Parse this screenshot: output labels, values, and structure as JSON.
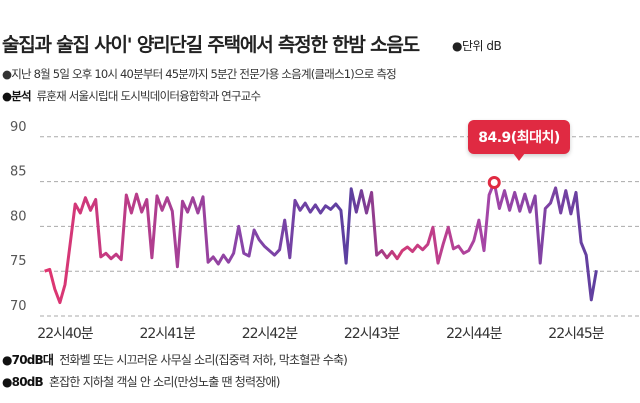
{
  "header": {
    "title": "술집과 술집 사이' 양리단길 주택에서 측정한 한밤 소음도",
    "unit": "●단위 dB",
    "note1": "●지난 8월 5일 오후 10시 40분부터 45분까지 5분간 전문가용 소음계(클래스1)으로 측정",
    "note2_label": "●분석",
    "note2_text": "류훈재 서울시립대 도시빅데이터융합학과 연구교수"
  },
  "footer": {
    "item1_label": "●70dB대",
    "item1_text": "전화벨 또는 시끄러운 사무실 소리(집중력 저하, 막초혈관 수축)",
    "item2_label": "●80dB",
    "item2_text": "혼잡한 지하철 객실 안 소리(만성노출 땐 청력장애)"
  },
  "chart_data": {
    "type": "line",
    "xlabel": "",
    "ylabel": "",
    "ylim": [
      70,
      90
    ],
    "yticks": [
      70,
      75,
      80,
      85,
      90
    ],
    "xticks": [
      "22:40:00",
      "22:41:00",
      "22:42:00",
      "22:43:00",
      "22:44:00",
      "22:45:00"
    ],
    "xtick_labels": [
      "22시40분",
      "22시41분",
      "22시42분",
      "22시43분",
      "22시44분",
      "22시45분"
    ],
    "grid": "horizontal dashed",
    "colors": [
      "#e0356f",
      "#8a45a8",
      "#5b3fa0",
      "#d03a78",
      "#a346a8",
      "#5c3f9f"
    ],
    "annotation": {
      "label": "84.9(최대치)",
      "x": "22:44:12",
      "y": 84.9,
      "color": "#e02a42"
    },
    "x": [
      "22:39:48",
      "22:39:51",
      "22:39:54",
      "22:39:57",
      "22:40:00",
      "22:40:03",
      "22:40:06",
      "22:40:09",
      "22:40:12",
      "22:40:15",
      "22:40:18",
      "22:40:21",
      "22:40:24",
      "22:40:27",
      "22:40:30",
      "22:40:33",
      "22:40:36",
      "22:40:39",
      "22:40:42",
      "22:40:45",
      "22:40:48",
      "22:40:51",
      "22:40:54",
      "22:40:57",
      "22:41:00",
      "22:41:03",
      "22:41:06",
      "22:41:09",
      "22:41:12",
      "22:41:15",
      "22:41:18",
      "22:41:21",
      "22:41:24",
      "22:41:27",
      "22:41:30",
      "22:41:33",
      "22:41:36",
      "22:41:39",
      "22:41:42",
      "22:41:45",
      "22:41:48",
      "22:41:51",
      "22:41:54",
      "22:41:57",
      "22:42:00",
      "22:42:03",
      "22:42:06",
      "22:42:09",
      "22:42:12",
      "22:42:15",
      "22:42:18",
      "22:42:21",
      "22:42:24",
      "22:42:27",
      "22:42:30",
      "22:42:33",
      "22:42:36",
      "22:42:39",
      "22:42:42",
      "22:42:45",
      "22:42:48",
      "22:42:51",
      "22:42:54",
      "22:42:57",
      "22:43:00",
      "22:43:03",
      "22:43:06",
      "22:43:09",
      "22:43:12",
      "22:43:15",
      "22:43:18",
      "22:43:21",
      "22:43:24",
      "22:43:27",
      "22:43:30",
      "22:43:33",
      "22:43:36",
      "22:43:39",
      "22:43:42",
      "22:43:45",
      "22:43:48",
      "22:43:51",
      "22:43:54",
      "22:43:57",
      "22:44:00",
      "22:44:03",
      "22:44:06",
      "22:44:09",
      "22:44:12",
      "22:44:15",
      "22:44:18",
      "22:44:21",
      "22:44:24",
      "22:44:27",
      "22:44:30",
      "22:44:33",
      "22:44:36",
      "22:44:39",
      "22:44:42",
      "22:44:45",
      "22:44:48",
      "22:44:51",
      "22:44:54",
      "22:44:57",
      "22:45:00",
      "22:45:03",
      "22:45:06",
      "22:45:09",
      "22:45:12"
    ],
    "values": [
      75.0,
      75.2,
      73.0,
      71.5,
      73.5,
      78.0,
      82.5,
      81.5,
      83.2,
      81.8,
      83.0,
      76.6,
      77.0,
      76.4,
      76.9,
      76.3,
      83.5,
      81.5,
      83.6,
      81.6,
      83.0,
      76.5,
      83.4,
      81.8,
      83.2,
      81.7,
      75.5,
      82.8,
      81.6,
      83.2,
      81.5,
      83.3,
      76.0,
      76.6,
      75.8,
      76.8,
      76.0,
      77.0,
      80.0,
      77.0,
      76.7,
      79.6,
      78.5,
      77.8,
      77.3,
      76.8,
      77.4,
      80.7,
      76.5,
      82.9,
      81.8,
      82.6,
      81.6,
      82.4,
      81.5,
      82.3,
      81.9,
      82.5,
      81.8,
      75.9,
      84.2,
      81.6,
      84.0,
      81.5,
      83.8,
      76.8,
      77.3,
      76.5,
      77.2,
      76.4,
      77.3,
      77.7,
      77.2,
      77.9,
      77.4,
      78.0,
      79.9,
      75.9,
      78.0,
      79.9,
      77.5,
      77.8,
      77.0,
      77.3,
      78.4,
      80.7,
      77.3,
      83.5,
      84.9,
      82.0,
      84.0,
      81.8,
      83.8,
      81.7,
      83.6,
      81.6,
      83.4,
      75.9,
      82.0,
      82.6,
      84.3,
      81.5,
      84.0,
      81.4,
      83.8,
      78.2,
      76.8,
      71.8,
      75.1
    ]
  }
}
